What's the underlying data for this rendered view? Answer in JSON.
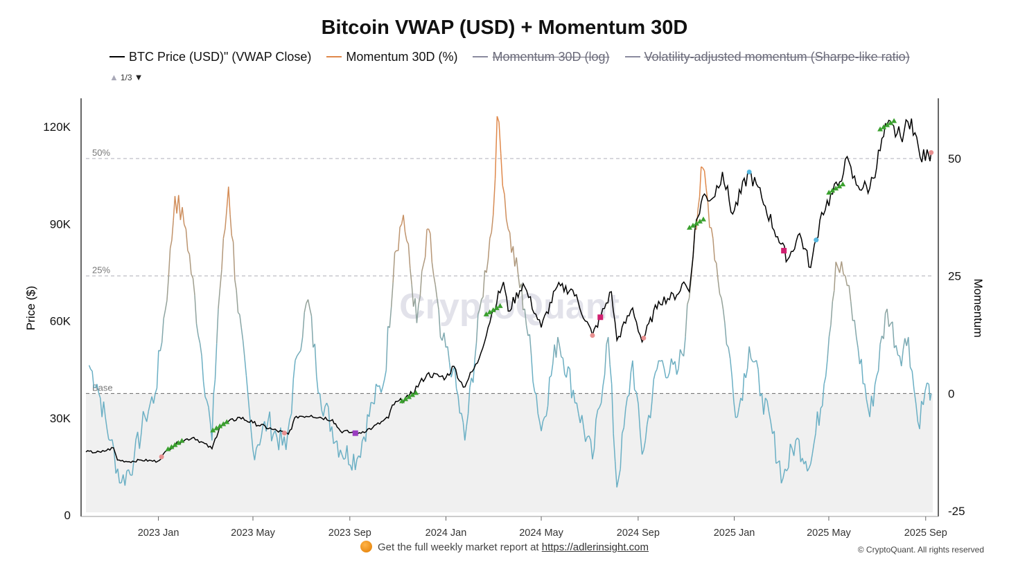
{
  "title": "Bitcoin VWAP (USD) + Momentum 30D",
  "legend": [
    {
      "label": "BTC Price (USD)\" (VWAP Close)",
      "color": "#000000",
      "active": true
    },
    {
      "label": "Momentum 30D (%)",
      "color": "#e0884a",
      "active": true
    },
    {
      "label": "Momentum 30D (log)",
      "color": "#8a8a9e",
      "active": false
    },
    {
      "label": "Volatility-adjusted momentum (Sharpe-like ratio)",
      "color": "#8a8a9e",
      "active": false
    }
  ],
  "legend_pager": "1/3",
  "footer": {
    "text": "Get the full weekly market report at ",
    "link": "https://adlerinsight.com",
    "copyright": "© CryptoQuant. All rights reserved"
  },
  "watermark": "CryptoQuant",
  "colors": {
    "price": "#000000",
    "momentum_high": "#e0884a",
    "momentum_low": "#6aafc4",
    "band": "#f0f0f0",
    "ref_line": "#aeaeb8"
  },
  "chart_data": {
    "type": "line",
    "title": "Bitcoin VWAP (USD) + Momentum 30D",
    "x_tick_labels": [
      "2023 Jan",
      "2023 May",
      "2023 Sep",
      "2024 Jan",
      "2024 May",
      "2024 Sep",
      "2025 Jan",
      "2025 May",
      "2025 Sep"
    ],
    "x_tick_dates": [
      "2023-01-01",
      "2023-05-01",
      "2023-09-01",
      "2024-01-01",
      "2024-05-01",
      "2024-09-01",
      "2025-01-01",
      "2025-05-01",
      "2025-09-01"
    ],
    "x_range": [
      "2022-10-01",
      "2025-09-10"
    ],
    "y_left": {
      "label": "Price ($)",
      "range": [
        0,
        120000
      ],
      "ticks": [
        0,
        30000,
        60000,
        90000,
        120000
      ],
      "tick_labels": [
        "0",
        "30K",
        "60K",
        "90K",
        "120K"
      ]
    },
    "y_right": {
      "label": "Momentum",
      "range": [
        -25,
        50
      ],
      "ticks": [
        -25,
        0,
        25,
        50
      ],
      "tick_labels": [
        "-25",
        "0",
        "25",
        "50"
      ]
    },
    "reference_lines": [
      {
        "label": "50%",
        "value": 50
      },
      {
        "label": "25%",
        "value": 25
      },
      {
        "label": "Base",
        "value": 0
      }
    ],
    "series": [
      {
        "name": "BTC Price (USD)\" (VWAP Close)",
        "axis": "left",
        "points": [
          [
            "2022-10-01",
            19500
          ],
          [
            "2022-10-20",
            19400
          ],
          [
            "2022-11-05",
            20800
          ],
          [
            "2022-11-10",
            17000
          ],
          [
            "2022-11-25",
            16500
          ],
          [
            "2022-12-10",
            17000
          ],
          [
            "2022-12-31",
            16600
          ],
          [
            "2023-01-14",
            20500
          ],
          [
            "2023-01-31",
            23000
          ],
          [
            "2023-02-15",
            24000
          ],
          [
            "2023-03-10",
            20500
          ],
          [
            "2023-03-20",
            27500
          ],
          [
            "2023-04-14",
            30200
          ],
          [
            "2023-05-01",
            28500
          ],
          [
            "2023-05-25",
            26500
          ],
          [
            "2023-06-15",
            25000
          ],
          [
            "2023-06-25",
            30500
          ],
          [
            "2023-07-14",
            30800
          ],
          [
            "2023-08-10",
            29500
          ],
          [
            "2023-08-20",
            26000
          ],
          [
            "2023-09-11",
            25200
          ],
          [
            "2023-09-30",
            27000
          ],
          [
            "2023-10-20",
            30000
          ],
          [
            "2023-10-25",
            34000
          ],
          [
            "2023-11-15",
            36500
          ],
          [
            "2023-12-08",
            43500
          ],
          [
            "2024-01-01",
            42500
          ],
          [
            "2024-01-11",
            46000
          ],
          [
            "2024-01-23",
            39500
          ],
          [
            "2024-02-10",
            47000
          ],
          [
            "2024-02-28",
            62000
          ],
          [
            "2024-03-14",
            72000
          ],
          [
            "2024-03-20",
            63000
          ],
          [
            "2024-04-08",
            71500
          ],
          [
            "2024-05-01",
            58000
          ],
          [
            "2024-05-21",
            70500
          ],
          [
            "2024-06-10",
            69500
          ],
          [
            "2024-07-05",
            55500
          ],
          [
            "2024-07-29",
            69000
          ],
          [
            "2024-08-05",
            54000
          ],
          [
            "2024-08-25",
            64000
          ],
          [
            "2024-09-06",
            53500
          ],
          [
            "2024-09-27",
            66000
          ],
          [
            "2024-10-20",
            68000
          ],
          [
            "2024-10-29",
            72000
          ],
          [
            "2024-11-05",
            69000
          ],
          [
            "2024-11-12",
            88000
          ],
          [
            "2024-11-22",
            98500
          ],
          [
            "2024-12-05",
            98000
          ],
          [
            "2024-12-17",
            106000
          ],
          [
            "2024-12-30",
            93000
          ],
          [
            "2025-01-20",
            106000
          ],
          [
            "2025-02-05",
            98000
          ],
          [
            "2025-02-25",
            86000
          ],
          [
            "2025-03-10",
            79000
          ],
          [
            "2025-03-25",
            87000
          ],
          [
            "2025-04-08",
            76500
          ],
          [
            "2025-04-22",
            93500
          ],
          [
            "2025-05-15",
            103000
          ],
          [
            "2025-05-22",
            110000
          ],
          [
            "2025-06-05",
            102000
          ],
          [
            "2025-06-22",
            101000
          ],
          [
            "2025-07-14",
            120500
          ],
          [
            "2025-07-31",
            117000
          ],
          [
            "2025-08-14",
            122500
          ],
          [
            "2025-08-25",
            110500
          ],
          [
            "2025-09-05",
            111000
          ],
          [
            "2025-09-08",
            112000
          ]
        ]
      },
      {
        "name": "Momentum 30D (%)",
        "axis": "right",
        "points": [
          [
            "2022-10-05",
            6
          ],
          [
            "2022-10-15",
            2
          ],
          [
            "2022-11-01",
            -10
          ],
          [
            "2022-11-15",
            -19
          ],
          [
            "2022-12-01",
            -14
          ],
          [
            "2022-12-15",
            -5
          ],
          [
            "2022-12-28",
            0
          ],
          [
            "2023-01-14",
            25
          ],
          [
            "2023-01-22",
            42
          ],
          [
            "2023-02-05",
            35
          ],
          [
            "2023-02-25",
            8
          ],
          [
            "2023-03-10",
            -10
          ],
          [
            "2023-03-18",
            18
          ],
          [
            "2023-03-31",
            44
          ],
          [
            "2023-04-10",
            22
          ],
          [
            "2023-05-01",
            -12
          ],
          [
            "2023-05-20",
            -6
          ],
          [
            "2023-06-12",
            -12
          ],
          [
            "2023-06-26",
            8
          ],
          [
            "2023-07-10",
            20
          ],
          [
            "2023-07-25",
            0
          ],
          [
            "2023-08-20",
            -12
          ],
          [
            "2023-09-10",
            -14
          ],
          [
            "2023-09-30",
            -2
          ],
          [
            "2023-10-15",
            3
          ],
          [
            "2023-10-28",
            30
          ],
          [
            "2023-11-08",
            38
          ],
          [
            "2023-11-25",
            15
          ],
          [
            "2023-12-10",
            35
          ],
          [
            "2023-12-25",
            12
          ],
          [
            "2024-01-10",
            5
          ],
          [
            "2024-01-25",
            -10
          ],
          [
            "2024-02-15",
            20
          ],
          [
            "2024-03-01",
            38
          ],
          [
            "2024-03-06",
            59
          ],
          [
            "2024-03-20",
            35
          ],
          [
            "2024-04-10",
            18
          ],
          [
            "2024-05-01",
            -8
          ],
          [
            "2024-05-22",
            12
          ],
          [
            "2024-06-15",
            -2
          ],
          [
            "2024-07-05",
            -14
          ],
          [
            "2024-07-25",
            12
          ],
          [
            "2024-08-05",
            -20
          ],
          [
            "2024-08-25",
            7
          ],
          [
            "2024-09-06",
            -13
          ],
          [
            "2024-09-27",
            7
          ],
          [
            "2024-10-20",
            4
          ],
          [
            "2024-10-31",
            12
          ],
          [
            "2024-11-12",
            35
          ],
          [
            "2024-11-22",
            48
          ],
          [
            "2024-12-05",
            33
          ],
          [
            "2024-12-20",
            15
          ],
          [
            "2025-01-05",
            -5
          ],
          [
            "2025-01-20",
            10
          ],
          [
            "2025-02-05",
            0
          ],
          [
            "2025-03-04",
            -18
          ],
          [
            "2025-03-20",
            -10
          ],
          [
            "2025-04-08",
            -15
          ],
          [
            "2025-04-25",
            2
          ],
          [
            "2025-05-10",
            28
          ],
          [
            "2025-05-22",
            25
          ],
          [
            "2025-06-05",
            12
          ],
          [
            "2025-06-22",
            -5
          ],
          [
            "2025-07-14",
            18
          ],
          [
            "2025-07-30",
            8
          ],
          [
            "2025-08-10",
            12
          ],
          [
            "2025-08-22",
            -6
          ],
          [
            "2025-09-05",
            2
          ],
          [
            "2025-09-08",
            0
          ]
        ]
      }
    ],
    "markers": [
      {
        "date": "2023-01-22",
        "type": "up",
        "color": "#3aa02e"
      },
      {
        "date": "2023-03-20",
        "type": "up",
        "color": "#3aa02e"
      },
      {
        "date": "2023-11-15",
        "type": "up",
        "color": "#3aa02e"
      },
      {
        "date": "2024-03-01",
        "type": "up",
        "color": "#3aa02e"
      },
      {
        "date": "2024-11-14",
        "type": "up",
        "color": "#3aa02e"
      },
      {
        "date": "2025-05-10",
        "type": "up",
        "color": "#3aa02e"
      },
      {
        "date": "2025-07-14",
        "type": "up",
        "color": "#3aa02e"
      },
      {
        "date": "2023-01-05",
        "type": "dot",
        "color": "#e89090"
      },
      {
        "date": "2023-06-10",
        "type": "dot",
        "color": "#e89090"
      },
      {
        "date": "2024-07-05",
        "type": "dot",
        "color": "#e89090"
      },
      {
        "date": "2024-09-08",
        "type": "dot",
        "color": "#e89090"
      },
      {
        "date": "2025-01-20",
        "type": "dot",
        "color": "#55b8e0"
      },
      {
        "date": "2025-04-15",
        "type": "dot",
        "color": "#55b8e0"
      },
      {
        "date": "2025-09-08",
        "type": "dot",
        "color": "#e89090"
      },
      {
        "date": "2023-09-08",
        "type": "square",
        "color": "#9a3cc0"
      },
      {
        "date": "2024-07-15",
        "type": "square",
        "color": "#d02070"
      },
      {
        "date": "2025-03-05",
        "type": "square",
        "color": "#d02070"
      }
    ]
  }
}
